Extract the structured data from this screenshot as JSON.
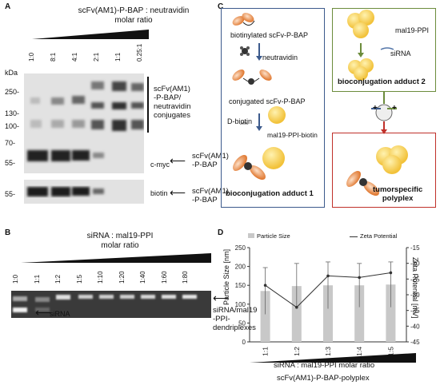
{
  "panelA": {
    "letter": "A",
    "title_line1": "scFv(AM1)-P-BAP : neutravidin",
    "title_line2": "molar ratio",
    "lanes": [
      "1:0",
      "8:1",
      "4:1",
      "2:1",
      "1:1",
      "0.25:1"
    ],
    "kda": "kDa",
    "markers": [
      "250-",
      "130-",
      "100-",
      "70-",
      "55-",
      "55-"
    ],
    "label_conj": "scFv(AM1)\n-P-BAP/\nneutravidin\nconjugates",
    "label_cmyc": "c-myc",
    "label_bap1": "scFv(AM1)\n-P-BAP",
    "label_biotin": "biotin",
    "label_bap2": "scFv(AM1)\n-P-BAP"
  },
  "panelB": {
    "letter": "B",
    "title_line1": "siRNA : mal19-PPI",
    "title_line2": "molar ratio",
    "lanes": [
      "1:0",
      "1:1",
      "1:2",
      "1:5",
      "1:10",
      "1:20",
      "1:40",
      "1:60",
      "1:80"
    ],
    "label_sirna": "siRNA",
    "label_dendri": "siRNA/mal19\n-PPI-\ndendriplexes"
  },
  "panelC": {
    "letter": "C",
    "t1": "biotinylated scFv-P-BAP",
    "t2": "neutravidin",
    "t3": "conjugated scFv-P-BAP",
    "t4": "D-biotin",
    "t5": "mal19-PPI-biotin",
    "t6": "bioconjugation adduct 1",
    "t7": "mal19-PPI",
    "t8": "siRNA",
    "t9": "bioconjugation adduct 2",
    "t10": "tumorspecific\npolyplex",
    "plus": "+"
  },
  "panelD": {
    "letter": "D",
    "legend_bar": "Particle Size",
    "legend_line": "Zeta Potential",
    "ylabel_left": "Particle Size [nm]",
    "ylabel_right": "Zeta Potential [mV]",
    "xlabel": "siRNA : mal19-PPI molar ratio",
    "caption": "scFv(AM1)-P-BAP-polyplex"
  },
  "chart_data": {
    "type": "bar",
    "categories": [
      "1:1",
      "1:2",
      "1:3",
      "1:4",
      "1:5"
    ],
    "series": [
      {
        "name": "Particle Size",
        "type": "bar",
        "axis": "left",
        "values": [
          135,
          148,
          150,
          150,
          152
        ],
        "errors": [
          62,
          60,
          62,
          58,
          60
        ]
      },
      {
        "name": "Zeta Potential",
        "type": "line",
        "axis": "right",
        "values": [
          -27,
          -34,
          -24,
          -24.5,
          -23
        ]
      }
    ],
    "xlabel": "siRNA : mal19-PPI molar ratio",
    "ylabel": "Particle Size [nm]",
    "ylabel_right": "Zeta Potential [mV]",
    "ylim": [
      0,
      250
    ],
    "ylim_right": [
      -45,
      -15
    ],
    "yticks": [
      0,
      50,
      100,
      150,
      200,
      250
    ],
    "yticks_right": [
      -15,
      -20,
      -25,
      -30,
      -35,
      -40,
      -45
    ],
    "legend": "top",
    "grid": false
  }
}
